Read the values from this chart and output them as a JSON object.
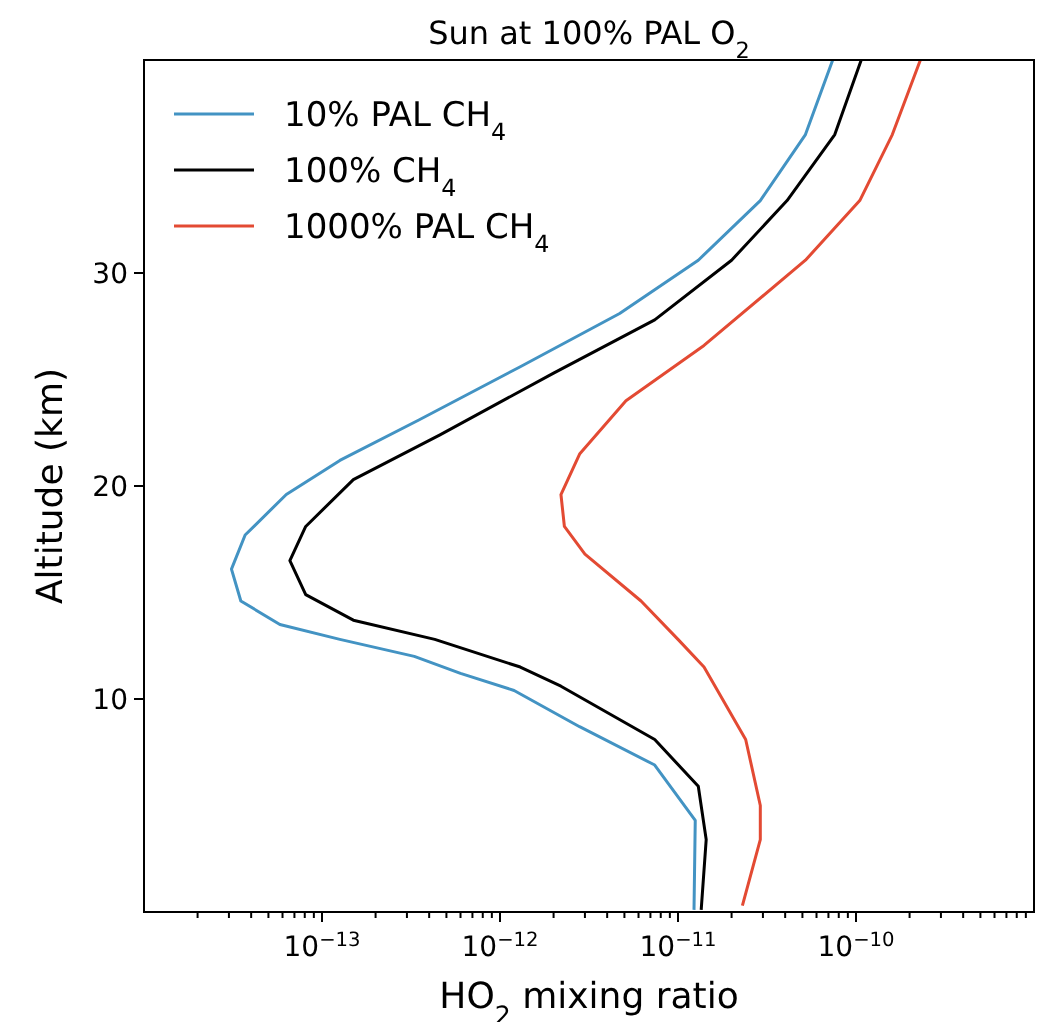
{
  "chart_data": {
    "type": "line",
    "title": "Sun at 100% PAL O$_{2}$",
    "xlabel": "HO$_{2}$ mixing ratio",
    "ylabel": "Altitude (km)",
    "log": "x",
    "xlim": [
      1e-14,
      1e-09
    ],
    "ylim": [
      0,
      40
    ],
    "xticks": [
      {
        "value": 2e-14,
        "label": null
      },
      {
        "value": 3e-14,
        "label": null
      },
      {
        "value": 4e-14,
        "label": null
      },
      {
        "value": 5e-14,
        "label": null
      },
      {
        "value": 6e-14,
        "label": null
      },
      {
        "value": 7e-14,
        "label": null
      },
      {
        "value": 8e-14,
        "label": null
      },
      {
        "value": 9e-14,
        "label": null
      },
      {
        "value": 1e-13,
        "label": "10$^{−13}$"
      },
      {
        "value": 2e-13,
        "label": null
      },
      {
        "value": 3e-13,
        "label": null
      },
      {
        "value": 4e-13,
        "label": null
      },
      {
        "value": 5e-13,
        "label": null
      },
      {
        "value": 6e-13,
        "label": null
      },
      {
        "value": 7e-13,
        "label": null
      },
      {
        "value": 8e-13,
        "label": null
      },
      {
        "value": 9e-13,
        "label": null
      },
      {
        "value": 1e-12,
        "label": "10$^{−12}$"
      },
      {
        "value": 2e-12,
        "label": null
      },
      {
        "value": 3e-12,
        "label": null
      },
      {
        "value": 4e-12,
        "label": null
      },
      {
        "value": 5e-12,
        "label": null
      },
      {
        "value": 6e-12,
        "label": null
      },
      {
        "value": 7e-12,
        "label": null
      },
      {
        "value": 8e-12,
        "label": null
      },
      {
        "value": 9e-12,
        "label": null
      },
      {
        "value": 1e-11,
        "label": "10$^{−11}$"
      },
      {
        "value": 2e-11,
        "label": null
      },
      {
        "value": 3e-11,
        "label": null
      },
      {
        "value": 4e-11,
        "label": null
      },
      {
        "value": 5e-11,
        "label": null
      },
      {
        "value": 6e-11,
        "label": null
      },
      {
        "value": 7e-11,
        "label": null
      },
      {
        "value": 8e-11,
        "label": null
      },
      {
        "value": 9e-11,
        "label": null
      },
      {
        "value": 1e-10,
        "label": "10$^{−10}$"
      },
      {
        "value": 2e-10,
        "label": null
      },
      {
        "value": 3e-10,
        "label": null
      },
      {
        "value": 4e-10,
        "label": null
      },
      {
        "value": 5e-10,
        "label": null
      },
      {
        "value": 6e-10,
        "label": null
      },
      {
        "value": 7e-10,
        "label": null
      },
      {
        "value": 8e-10,
        "label": null
      },
      {
        "value": 9e-10,
        "label": null
      }
    ],
    "yticks": [
      10,
      20,
      30
    ],
    "grid": false,
    "legend": "top left",
    "line_style": "solid",
    "marker": "none",
    "series": [
      {
        "name": "10% PAL CH$_{4}$",
        "color": "#4393c3",
        "x": [
          1.23e-11,
          1.25e-11,
          7.4e-12,
          2.8e-12,
          1.2e-12,
          6e-13,
          3.3e-13,
          1.26e-13,
          5.8e-14,
          3.5e-14,
          3.1e-14,
          3.7e-14,
          6.3e-14,
          1.26e-13,
          3.5e-13,
          1.3e-12,
          4.7e-12,
          1.3e-11,
          2.9e-11,
          5.2e-11,
          7.4e-11
        ],
        "values": [
          0.1,
          4.3,
          6.9,
          8.7,
          10.4,
          11.2,
          12,
          12.8,
          13.5,
          14.6,
          16.1,
          17.7,
          19.6,
          21.2,
          23.1,
          25.6,
          28.1,
          30.6,
          33.4,
          36.5,
          40
        ]
      },
      {
        "name": "100% CH$_{4}$",
        "color": "#000000",
        "x": [
          1.35e-11,
          1.44e-11,
          1.3e-11,
          7.4e-12,
          2.2e-12,
          1.3e-12,
          4.3e-13,
          1.5e-13,
          8.1e-14,
          6.6e-14,
          8.1e-14,
          1.5e-13,
          4.6e-13,
          2e-12,
          7.4e-12,
          2e-11,
          4.1e-11,
          7.6e-11,
          1.07e-10
        ],
        "values": [
          0.1,
          3.4,
          5.9,
          8.1,
          10.6,
          11.5,
          12.8,
          13.7,
          14.9,
          16.5,
          18.1,
          20.3,
          22.4,
          25.3,
          27.8,
          30.6,
          33.4,
          36.5,
          40
        ]
      },
      {
        "name": "1000% PAL CH$_{4}$",
        "color": "#e34a33",
        "x": [
          2.3e-11,
          2.9e-11,
          2.9e-11,
          2.4e-11,
          1.4e-11,
          1e-11,
          6.2e-12,
          3e-12,
          2.3e-12,
          2.2e-12,
          2.8e-12,
          5.1e-12,
          1.4e-11,
          5.2e-11,
          1.05e-10,
          1.6e-10,
          2.3e-10
        ],
        "values": [
          0.3,
          3.4,
          5,
          8.1,
          11.5,
          12.8,
          14.6,
          16.8,
          18.1,
          19.6,
          21.5,
          24,
          26.6,
          30.6,
          33.4,
          36.5,
          40
        ]
      }
    ]
  }
}
